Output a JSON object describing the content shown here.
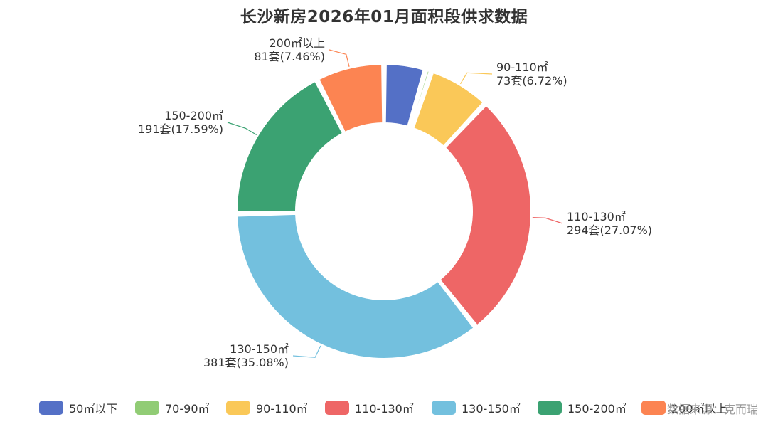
{
  "chart_data": {
    "type": "pie",
    "title": "长沙新房2026年01月面积段供求数据",
    "categories": [
      "50㎡以下",
      "70-90㎡",
      "90-110㎡",
      "110-130㎡",
      "130-150㎡",
      "150-200㎡",
      "200㎡以上"
    ],
    "values": [
      49,
      7,
      73,
      294,
      381,
      191,
      81
    ],
    "colors": [
      "#5470c6",
      "#91cc75",
      "#fac858",
      "#ee6666",
      "#73c0de",
      "#3ba272",
      "#fc8452"
    ],
    "labels": [
      null,
      null,
      {
        "name": "90-110㎡",
        "value": "73套(6.72%)"
      },
      {
        "name": "110-130㎡",
        "value": "294套(27.07%)"
      },
      {
        "name": "130-150㎡",
        "value": "381套(35.08%)"
      },
      {
        "name": "150-200㎡",
        "value": "191套(17.59%)"
      },
      {
        "name": "200㎡以上",
        "value": "81套(7.46%)"
      }
    ],
    "donut": true,
    "legend_position": "bottom"
  },
  "legend": [
    "50㎡以下",
    "70-90㎡",
    "90-110㎡",
    "110-130㎡",
    "130-150㎡",
    "150-200㎡",
    "200㎡以上"
  ],
  "watermark": "数据来源：克而瑞"
}
